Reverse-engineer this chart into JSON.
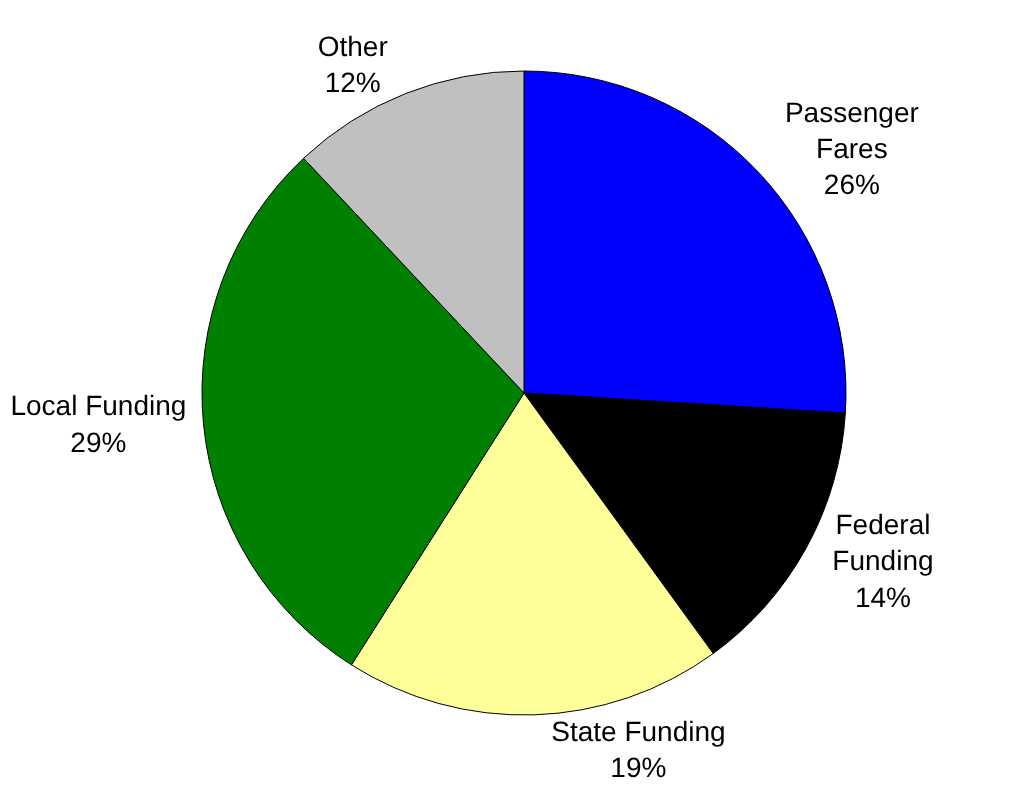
{
  "chart_data": {
    "type": "pie",
    "categories": [
      "Passenger Fares",
      "Federal Funding",
      "State Funding",
      "Local Funding",
      "Other"
    ],
    "values": [
      26,
      14,
      19,
      29,
      12
    ],
    "value_labels": [
      "26%",
      "14%",
      "19%",
      "29%",
      "12%"
    ],
    "colors": [
      "#0000ff",
      "#000000",
      "#ffff99",
      "#008000",
      "#c0c0c0"
    ],
    "legend": false
  }
}
